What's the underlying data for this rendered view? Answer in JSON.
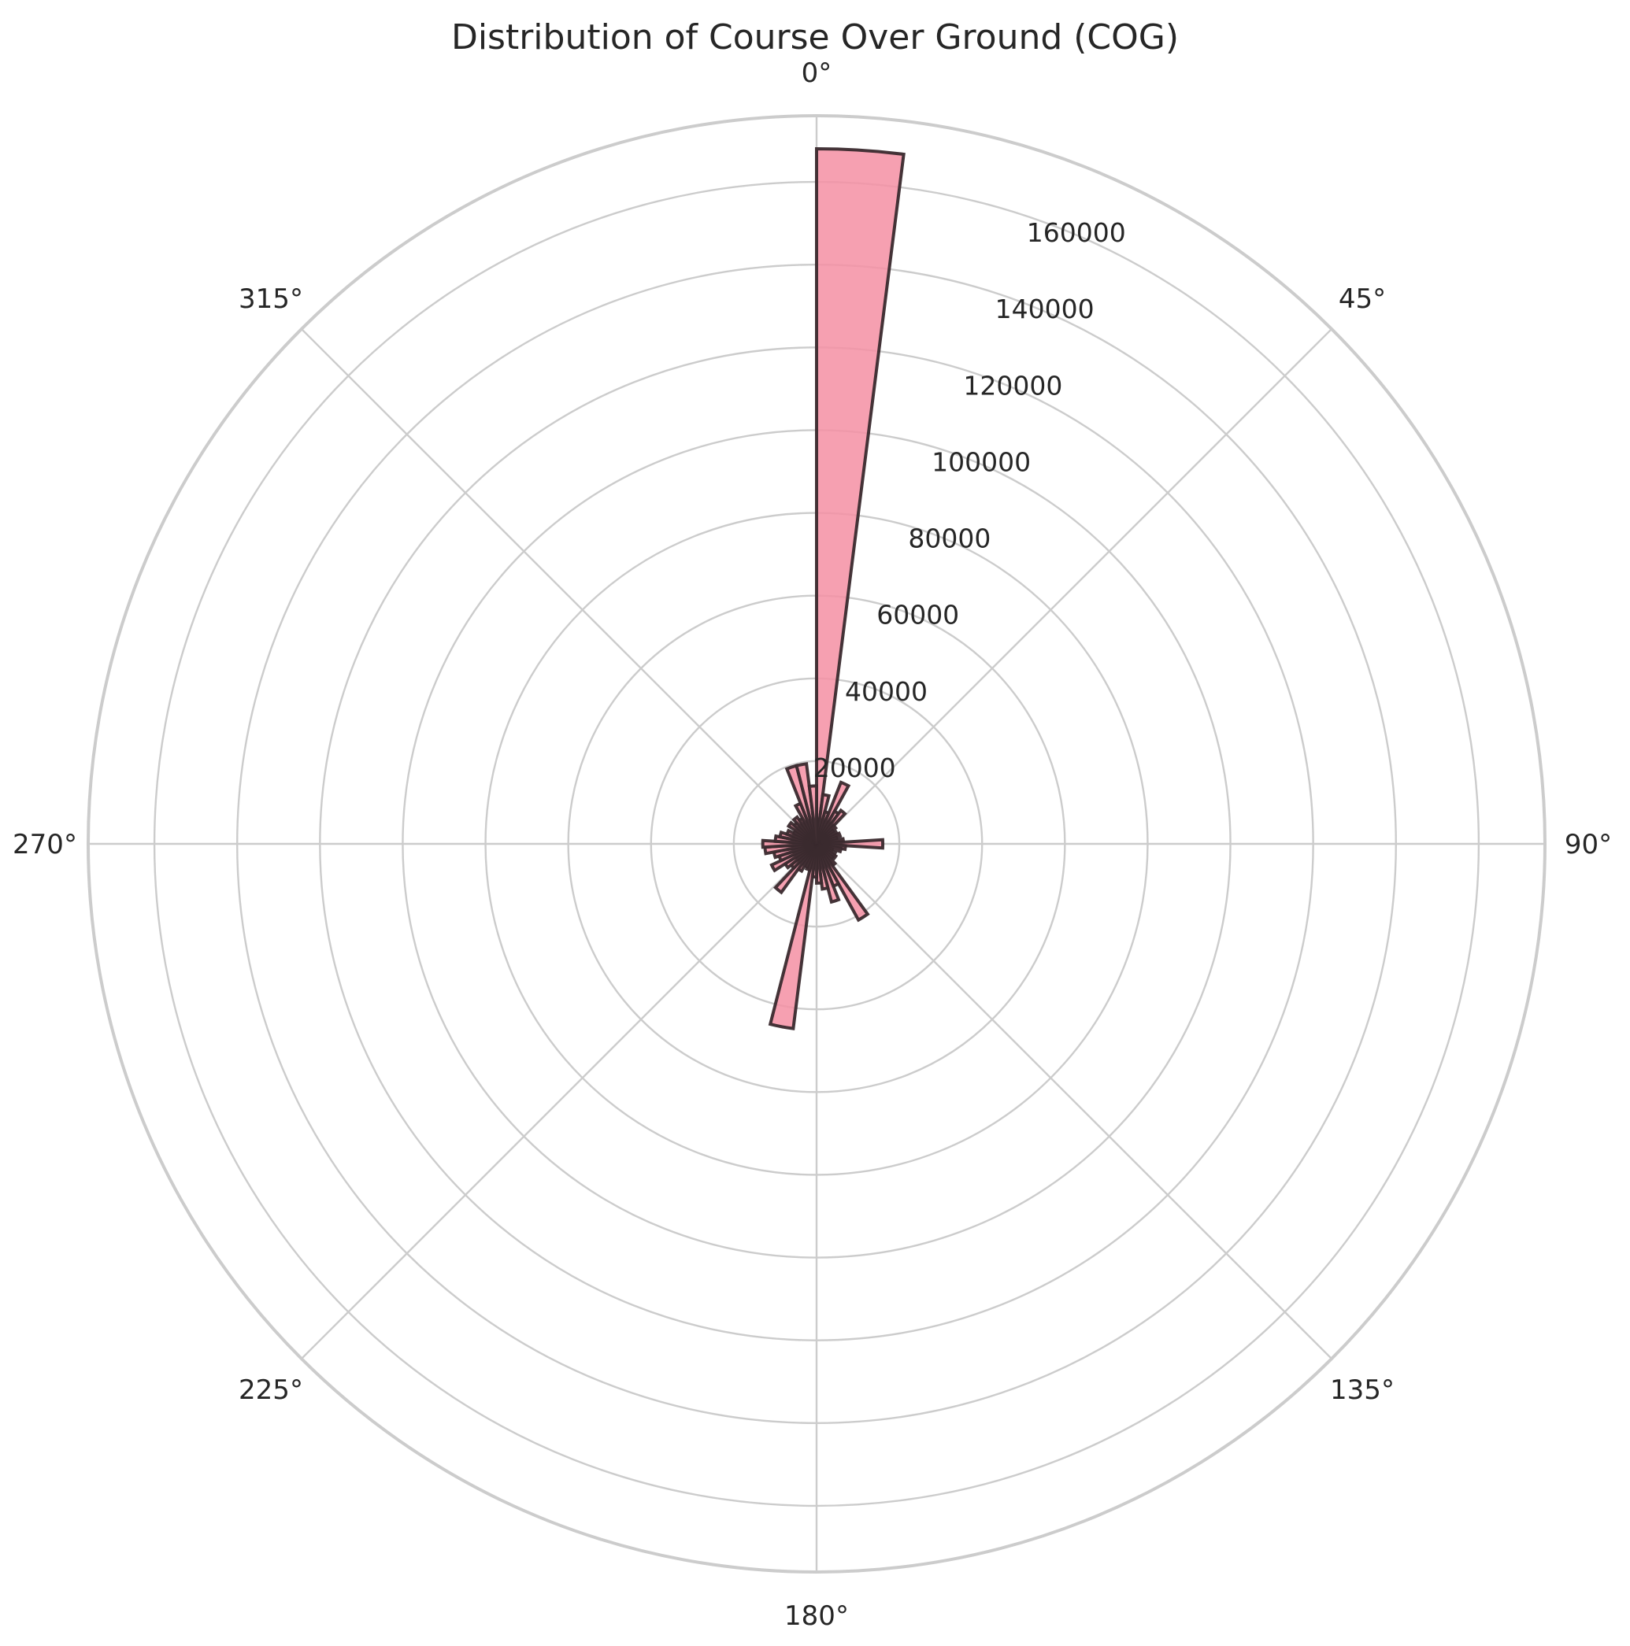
{
  "chart_data": {
    "type": "polar-bar",
    "title": "Distribution of Course Over Ground (COG)",
    "theta_direction": "clockwise",
    "theta_zero": "N",
    "theta_ticks": [
      "0°",
      "45°",
      "90°",
      "135°",
      "180°",
      "225°",
      "270°",
      "315°"
    ],
    "radial_ticks": [
      "20000",
      "40000",
      "60000",
      "80000",
      "100000",
      "120000",
      "140000",
      "160000"
    ],
    "radial_tick_values": [
      20000,
      40000,
      60000,
      80000,
      100000,
      120000,
      140000,
      160000
    ],
    "rlim": [
      0,
      176000
    ],
    "bin_width_deg": 7.2,
    "bin_start_deg": [
      0,
      7.2,
      14.4,
      21.6,
      28.8,
      36,
      43.2,
      50.4,
      57.6,
      64.8,
      72,
      79.2,
      86.4,
      93.6,
      100.8,
      108,
      115.2,
      122.4,
      129.6,
      136.8,
      144,
      151.2,
      158.4,
      165.6,
      172.8,
      180,
      187.2,
      194.4,
      201.6,
      208.8,
      216,
      223.2,
      230.4,
      237.6,
      244.8,
      252,
      259.2,
      266.4,
      273.6,
      280.8,
      288,
      295.2,
      302.4,
      309.6,
      316.8,
      324,
      331.2,
      338.4,
      345.6,
      352.8
    ],
    "values": [
      168000,
      12000,
      8000,
      16000,
      9000,
      10000,
      6000,
      5000,
      5500,
      6000,
      5000,
      6500,
      16000,
      7000,
      6000,
      4000,
      5000,
      5500,
      5000,
      6500,
      21000,
      11000,
      14500,
      11000,
      9500,
      8000,
      45000,
      6500,
      6000,
      7500,
      14500,
      8000,
      9000,
      12000,
      9500,
      10500,
      12500,
      13000,
      10000,
      9000,
      7500,
      6000,
      8000,
      7000,
      8000,
      7000,
      10500,
      19500,
      19500,
      14000
    ],
    "colors": {
      "bar_fill": "#f48fa3",
      "bar_edge": "#3a2a2e",
      "grid": "#cccccc"
    },
    "grid": true
  }
}
